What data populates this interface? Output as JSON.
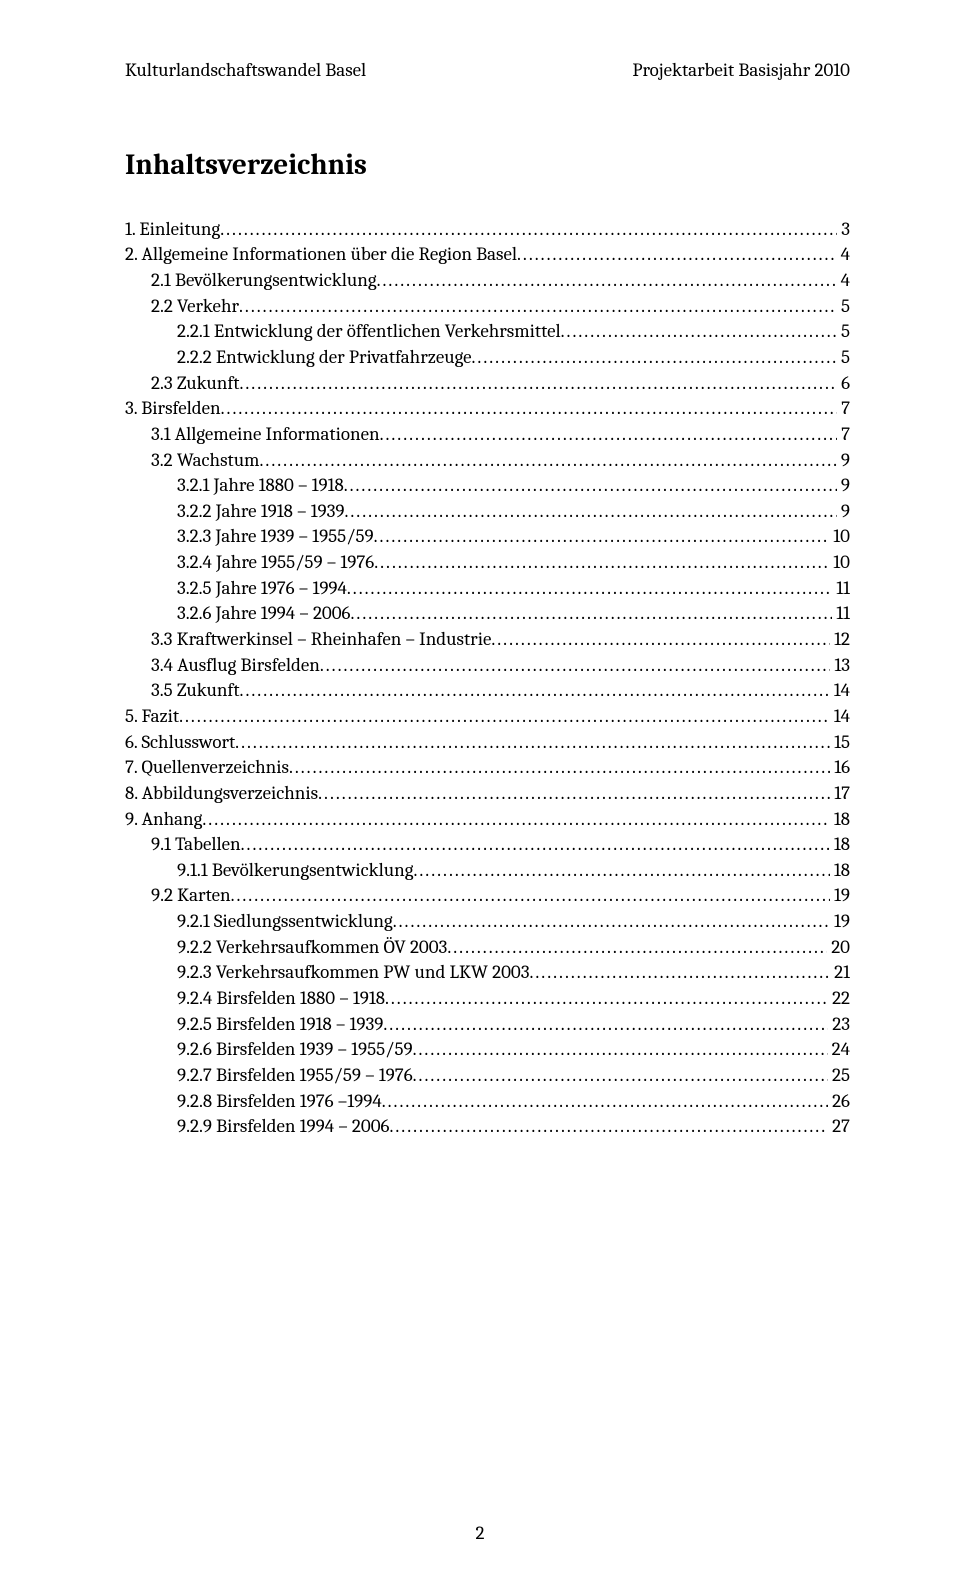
{
  "header": {
    "left": "Kulturlandschaftswandel Basel",
    "right": "Projektarbeit Basisjahr 2010"
  },
  "title": "Inhaltsverzeichnis",
  "page_number": "2",
  "toc": [
    {
      "level": 0,
      "label": "1. Einleitung",
      "page": "3"
    },
    {
      "level": 0,
      "label": "2. Allgemeine Informationen über die Region Basel",
      "page": "4"
    },
    {
      "level": 1,
      "label": "2.1 Bevölkerungsentwicklung",
      "page": "4"
    },
    {
      "level": 1,
      "label": "2.2 Verkehr",
      "page": "5"
    },
    {
      "level": 2,
      "label": "2.2.1 Entwicklung der öffentlichen Verkehrsmittel",
      "page": "5"
    },
    {
      "level": 2,
      "label": "2.2.2 Entwicklung der Privatfahrzeuge",
      "page": "5"
    },
    {
      "level": 1,
      "label": "2.3 Zukunft",
      "page": "6"
    },
    {
      "level": 0,
      "label": "3. Birsfelden",
      "page": "7"
    },
    {
      "level": 1,
      "label": "3.1 Allgemeine Informationen",
      "page": "7"
    },
    {
      "level": 1,
      "label": "3.2 Wachstum",
      "page": "9"
    },
    {
      "level": 2,
      "label": "3.2.1 Jahre 1880 – 1918",
      "page": "9"
    },
    {
      "level": 2,
      "label": "3.2.2 Jahre 1918 – 1939",
      "page": "9"
    },
    {
      "level": 2,
      "label": "3.2.3 Jahre 1939 – 1955/59",
      "page": "10"
    },
    {
      "level": 2,
      "label": "3.2.4 Jahre 1955/59 – 1976",
      "page": "10"
    },
    {
      "level": 2,
      "label": "3.2.5 Jahre 1976 – 1994",
      "page": "11"
    },
    {
      "level": 2,
      "label": "3.2.6 Jahre 1994 – 2006",
      "page": "11"
    },
    {
      "level": 1,
      "label": "3.3 Kraftwerkinsel – Rheinhafen – Industrie",
      "page": "12"
    },
    {
      "level": 1,
      "label": "3.4 Ausflug Birsfelden",
      "page": "13"
    },
    {
      "level": 1,
      "label": "3.5 Zukunft",
      "page": "14"
    },
    {
      "level": 0,
      "label": "5. Fazit",
      "page": "14"
    },
    {
      "level": 0,
      "label": "6. Schlusswort",
      "page": "15"
    },
    {
      "level": 0,
      "label": "7. Quellenverzeichnis",
      "page": "16"
    },
    {
      "level": 0,
      "label": "8. Abbildungsverzeichnis",
      "page": "17"
    },
    {
      "level": 0,
      "label": "9. Anhang",
      "page": "18"
    },
    {
      "level": 1,
      "label": "9.1 Tabellen",
      "page": "18"
    },
    {
      "level": 2,
      "label": "9.1.1 Bevölkerungsentwicklung",
      "page": "18"
    },
    {
      "level": 1,
      "label": "9.2 Karten",
      "page": "19"
    },
    {
      "level": 2,
      "label": "9.2.1 Siedlungssentwicklung",
      "page": "19"
    },
    {
      "level": 2,
      "label": "9.2.2 Verkehrsaufkommen ÖV 2003",
      "page": "20"
    },
    {
      "level": 2,
      "label": "9.2.3 Verkehrsaufkommen PW und LKW 2003",
      "page": "21"
    },
    {
      "level": 2,
      "label": "9.2.4 Birsfelden 1880 – 1918",
      "page": "22"
    },
    {
      "level": 2,
      "label": "9.2.5 Birsfelden 1918 – 1939",
      "page": "23"
    },
    {
      "level": 2,
      "label": "9.2.6 Birsfelden 1939 – 1955/59",
      "page": "24"
    },
    {
      "level": 2,
      "label": "9.2.7 Birsfelden 1955/59 – 1976",
      "page": "25"
    },
    {
      "level": 2,
      "label": "9.2.8 Birsfelden 1976 –1994",
      "page": "26"
    },
    {
      "level": 2,
      "label": "9.2.9 Birsfelden 1994 – 2006",
      "page": "27"
    }
  ]
}
